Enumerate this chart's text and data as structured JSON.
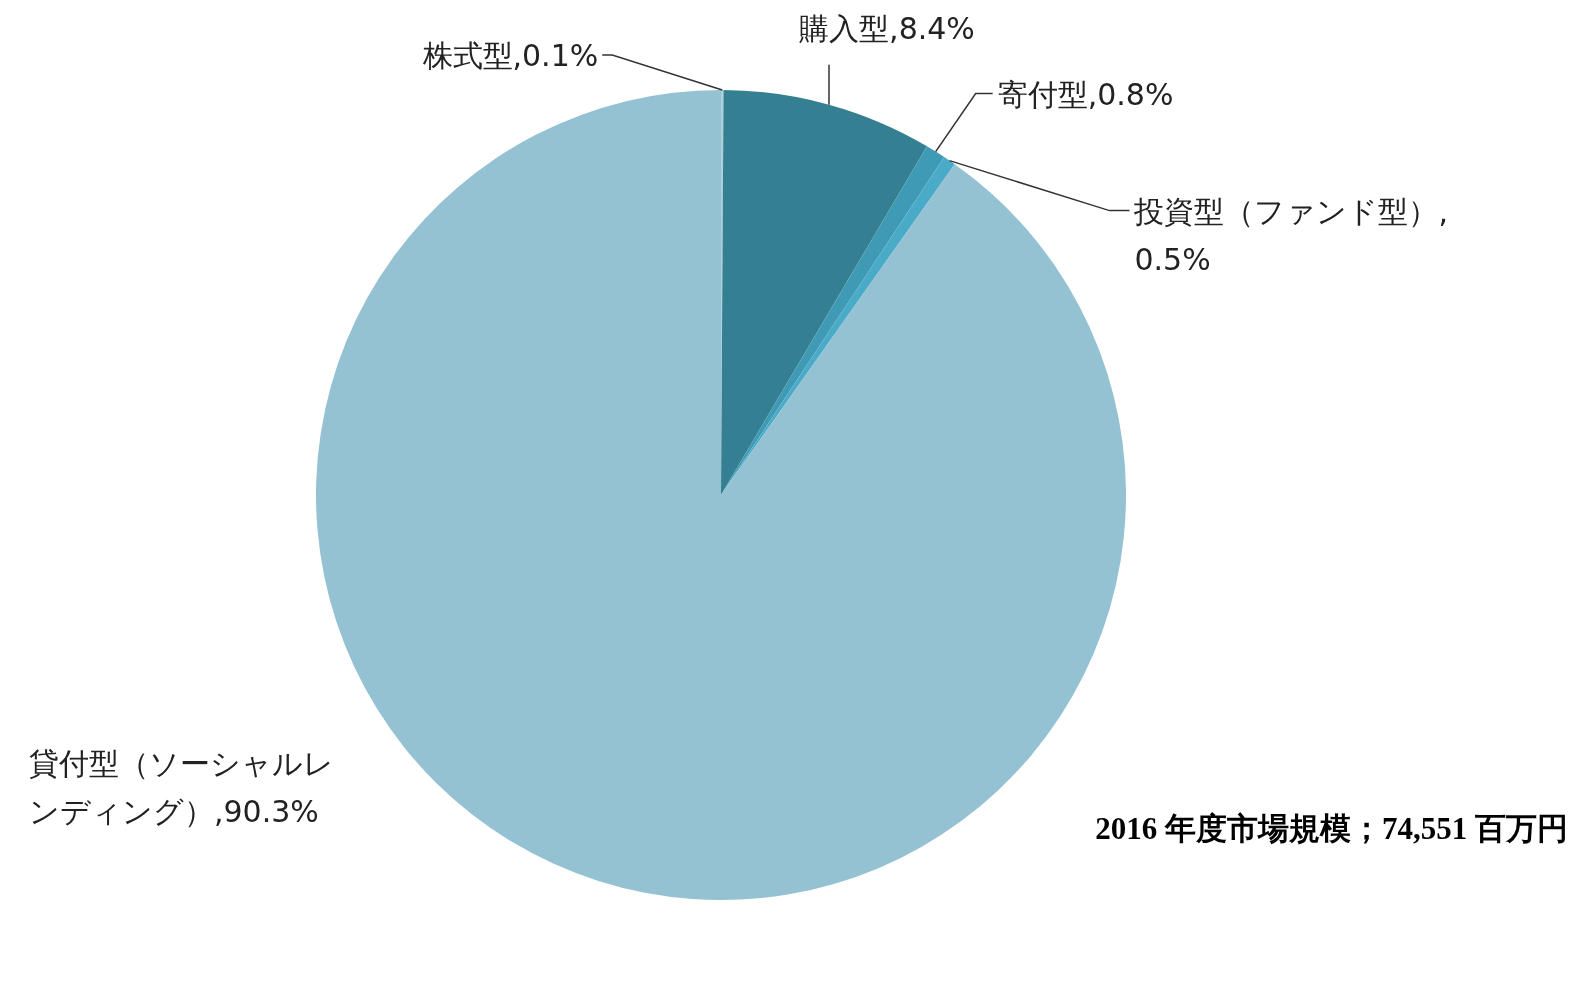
{
  "chart_data": {
    "type": "pie",
    "categories": [
      "株式型",
      "購入型",
      "寄付型",
      "投資型（ファンド型）",
      "貸付型（ソーシャルレンディング）"
    ],
    "values": [
      0.1,
      8.4,
      0.8,
      0.5,
      90.3
    ],
    "value_labels": [
      ",0.1%",
      ",8.4%",
      ",0.8%",
      ",0.5%",
      ",90.3%"
    ],
    "colors": [
      "#a9d0dc",
      "#357f92",
      "#3f9bb5",
      "#4aabc9",
      "#94c2d3"
    ],
    "annotations": [
      "2016 年度市場規模；74,551 百万円"
    ]
  }
}
